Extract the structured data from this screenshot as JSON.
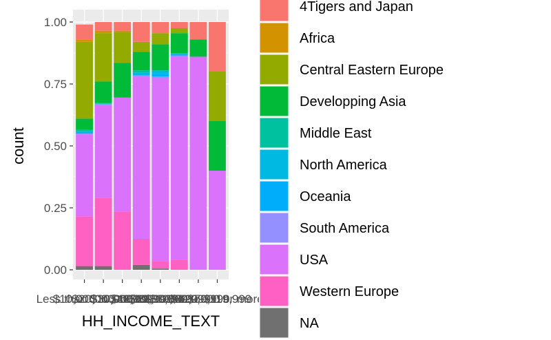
{
  "chart_data": {
    "type": "bar",
    "stacked": true,
    "position": "fill",
    "xlabel": "HH_INCOME_TEXT",
    "ylabel": "count",
    "ylim": [
      0,
      1
    ],
    "yticks": [
      "0.00",
      "0.25",
      "0.50",
      "0.75",
      "1.00"
    ],
    "categories": [
      "Less than $10,000",
      "$10,000 to $19,999",
      "$20,000 to $29,999",
      "$30,000 to $39,999",
      "$40,000 to $59,999",
      "$60,000 to $79,999",
      "$80,000 to $119,999",
      "$120,000 or more"
    ],
    "category_tick_labels_overlapping": true,
    "legend_position": "right",
    "series": [
      {
        "name": "4Tigers and Japan",
        "color": "#F8766D",
        "values": [
          0.06,
          0.035,
          0.035,
          0.08,
          0.045,
          0.025,
          0.07,
          0.2
        ]
      },
      {
        "name": "Africa",
        "color": "#D39200",
        "values": [
          0.01,
          0.01,
          0.005,
          0.0,
          0.0,
          0.0,
          0.0,
          0.0
        ]
      },
      {
        "name": "Central Eastern Europe",
        "color": "#93AA00",
        "values": [
          0.31,
          0.195,
          0.125,
          0.04,
          0.045,
          0.02,
          0.0,
          0.2
        ]
      },
      {
        "name": "Developping Asia",
        "color": "#00BA38",
        "values": [
          0.045,
          0.085,
          0.14,
          0.075,
          0.105,
          0.08,
          0.07,
          0.2
        ]
      },
      {
        "name": "Middle East",
        "color": "#00C19F",
        "values": [
          0.005,
          0.005,
          0.0,
          0.01,
          0.005,
          0.0,
          0.0,
          0.0
        ]
      },
      {
        "name": "North America",
        "color": "#00B9E3",
        "values": [
          0.01,
          0.0,
          0.0,
          0.01,
          0.01,
          0.005,
          0.0,
          0.0
        ]
      },
      {
        "name": "Oceania",
        "color": "#00ADFA",
        "values": [
          0.0,
          0.0,
          0.0,
          0.0,
          0.01,
          0.005,
          0.0,
          0.0
        ]
      },
      {
        "name": "South America",
        "color": "#9590FF",
        "values": [
          0.005,
          0.005,
          0.0,
          0.005,
          0.005,
          0.005,
          0.0,
          0.0
        ]
      },
      {
        "name": "USA",
        "color": "#DB72FB",
        "values": [
          0.33,
          0.375,
          0.46,
          0.655,
          0.74,
          0.82,
          0.86,
          0.4
        ]
      },
      {
        "name": "Western Europe",
        "color": "#FF61C3",
        "values": [
          0.2,
          0.275,
          0.235,
          0.105,
          0.03,
          0.04,
          0.0,
          0.0
        ]
      },
      {
        "name": "NA",
        "color": "#707070",
        "values": [
          0.015,
          0.015,
          0.0,
          0.02,
          0.005,
          0.0,
          0.0,
          0.0
        ]
      }
    ]
  }
}
